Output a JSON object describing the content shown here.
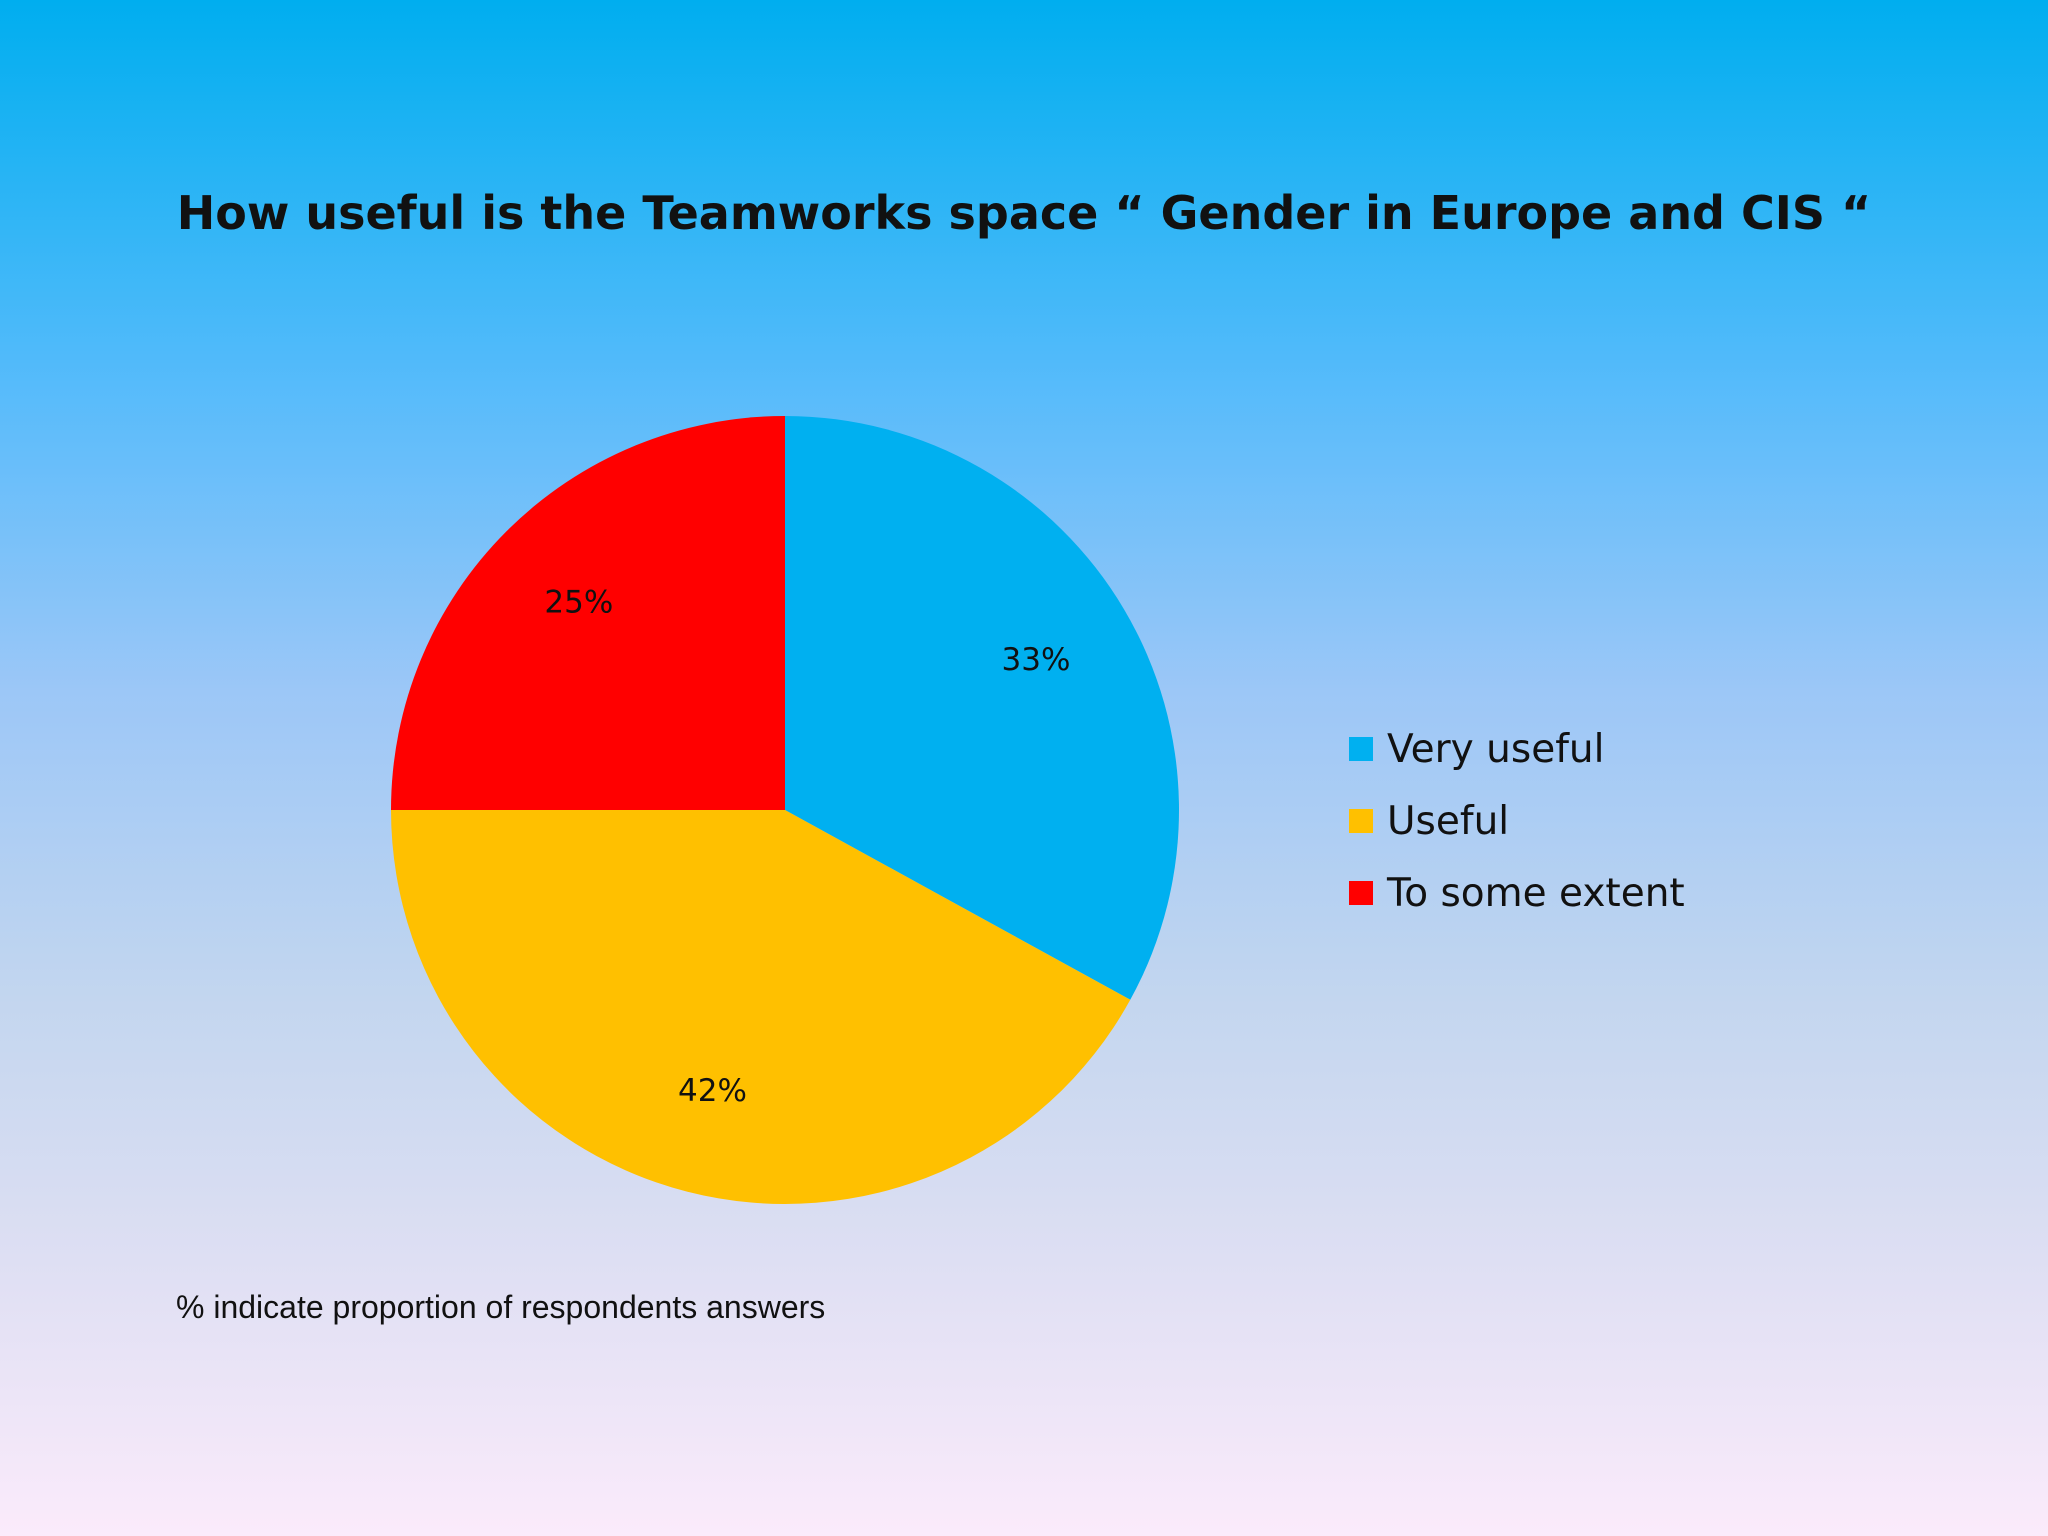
{
  "chart_data": {
    "type": "pie",
    "title": "How useful is the Teamworks space “ Gender in Europe and CIS “",
    "categories": [
      "Very useful",
      "Useful",
      "To some extent"
    ],
    "values": [
      33,
      42,
      25
    ],
    "data_labels": [
      "33%",
      "42%",
      "25%"
    ],
    "colors": [
      "#00b0f0",
      "#ffc000",
      "#ff0000"
    ],
    "legend_position": "right",
    "start_angle": "12 o'clock",
    "direction": "clockwise"
  },
  "footnote": "% indicate proportion of respondents answers"
}
